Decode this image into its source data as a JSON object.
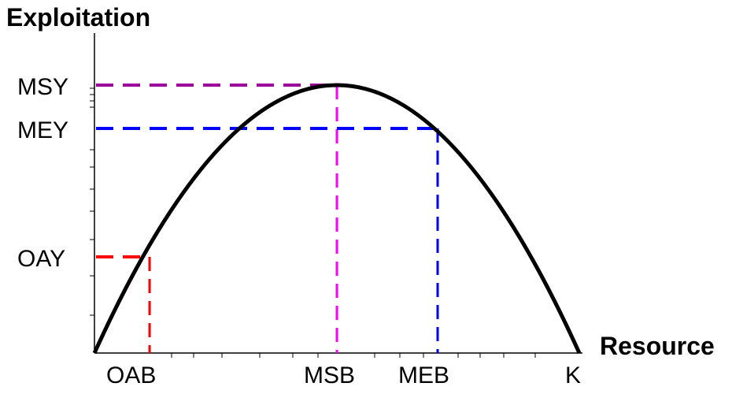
{
  "diagram": {
    "y_axis_title": "Exploitation",
    "x_axis_title": "Resource",
    "y_labels": [
      {
        "key": "msy",
        "label": "MSY"
      },
      {
        "key": "mey",
        "label": "MEY"
      },
      {
        "key": "oay",
        "label": "OAY"
      }
    ],
    "x_labels": [
      {
        "key": "oab",
        "label": "OAB"
      },
      {
        "key": "msb",
        "label": "MSB"
      },
      {
        "key": "meb",
        "label": "MEB"
      },
      {
        "key": "k",
        "label": "K"
      }
    ],
    "colors": {
      "curve": "#000000",
      "axes": "#000000",
      "msy_guide": "#9b009b",
      "msb_guide": "#ff00ff",
      "mey_guide": "#0000ff",
      "oay_guide": "#ff0000"
    }
  }
}
